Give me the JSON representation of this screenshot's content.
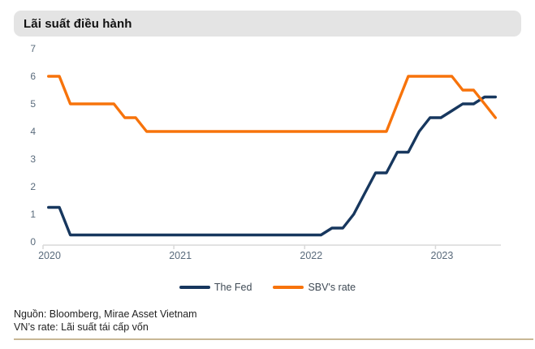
{
  "header": {
    "title": "Lãi suất điều hành"
  },
  "footer": {
    "source_line1": "Nguồn: Bloomberg, Mirae Asset Vietnam",
    "source_line2": "VN’s rate: Lãi suất tái cấp vốn"
  },
  "colors": {
    "fed_line": "#17375E",
    "sbv_line": "#F7730B",
    "axis_line": "#D9D9D9",
    "tick_label": "#5A6B7C",
    "title_bg": "#E4E4E4",
    "divider": "#C8B795"
  },
  "chart_data": {
    "type": "line",
    "title": "Lãi suất điều hành",
    "frequency": "monthly",
    "x": [
      "2020-01",
      "2020-02",
      "2020-03",
      "2020-04",
      "2020-05",
      "2020-06",
      "2020-07",
      "2020-08",
      "2020-09",
      "2020-10",
      "2020-11",
      "2020-12",
      "2021-01",
      "2021-02",
      "2021-03",
      "2021-04",
      "2021-05",
      "2021-06",
      "2021-07",
      "2021-08",
      "2021-09",
      "2021-10",
      "2021-11",
      "2021-12",
      "2022-01",
      "2022-02",
      "2022-03",
      "2022-04",
      "2022-05",
      "2022-06",
      "2022-07",
      "2022-08",
      "2022-09",
      "2022-10",
      "2022-11",
      "2022-12",
      "2023-01",
      "2023-02",
      "2023-03",
      "2023-04",
      "2023-05",
      "2023-06"
    ],
    "xticks": [
      "2020",
      "2021",
      "2022",
      "2023"
    ],
    "yticks": [
      0,
      1,
      2,
      3,
      4,
      5,
      6,
      7
    ],
    "ylim": [
      0,
      7
    ],
    "grid": false,
    "legend_position": "bottom",
    "series": [
      {
        "name": "The Fed",
        "color": "#17375E",
        "values": [
          1.25,
          1.25,
          0.25,
          0.25,
          0.25,
          0.25,
          0.25,
          0.25,
          0.25,
          0.25,
          0.25,
          0.25,
          0.25,
          0.25,
          0.25,
          0.25,
          0.25,
          0.25,
          0.25,
          0.25,
          0.25,
          0.25,
          0.25,
          0.25,
          0.25,
          0.25,
          0.5,
          0.5,
          1,
          1.75,
          2.5,
          2.5,
          3.25,
          3.25,
          4,
          4.5,
          4.5,
          4.75,
          5,
          5,
          5.25,
          5.25
        ]
      },
      {
        "name": "SBV's rate",
        "color": "#F7730B",
        "values": [
          6,
          6,
          5,
          5,
          5,
          5,
          5,
          4.5,
          4.5,
          4,
          4,
          4,
          4,
          4,
          4,
          4,
          4,
          4,
          4,
          4,
          4,
          4,
          4,
          4,
          4,
          4,
          4,
          4,
          4,
          4,
          4,
          4,
          5,
          6,
          6,
          6,
          6,
          6,
          5.5,
          5.5,
          5,
          4.5
        ]
      }
    ]
  }
}
